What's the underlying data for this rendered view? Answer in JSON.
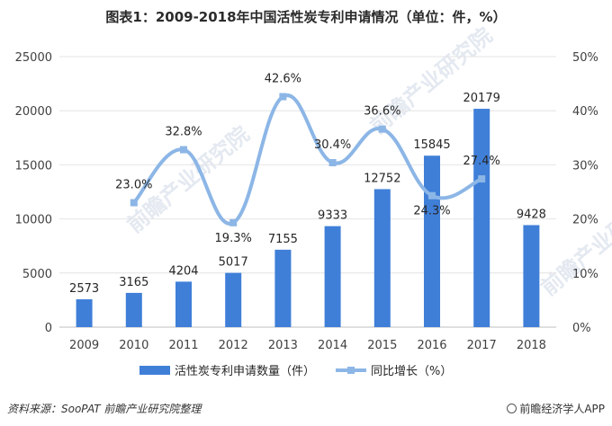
{
  "title": "图表1：2009-2018年中国活性炭专利申请情况（单位：件，%）",
  "footer": {
    "source": "资料来源：SooPAT  前瞻产业研究院整理",
    "brand": "前瞻经济学人APP"
  },
  "watermark": {
    "text": "前瞻产业研究院"
  },
  "colors": {
    "bar": "#3f7fd8",
    "line": "#8cb6e6"
  },
  "chart_data": {
    "type": "bar",
    "title": "图表1：2009-2018年中国活性炭专利申请情况（单位：件，%）",
    "categories": [
      "2009",
      "2010",
      "2011",
      "2012",
      "2013",
      "2014",
      "2015",
      "2016",
      "2017",
      "2018"
    ],
    "series": [
      {
        "name": "活性炭专利申请数量（件）",
        "type": "bar",
        "axis": "left",
        "values": [
          2573,
          3165,
          4204,
          5017,
          7155,
          9333,
          12752,
          15845,
          20179,
          9428
        ],
        "labels": [
          "2573",
          "3165",
          "4204",
          "5017",
          "7155",
          "9333",
          "12752",
          "15845",
          "20179",
          "9428"
        ]
      },
      {
        "name": "同比增长（%）",
        "type": "line",
        "axis": "right",
        "values": [
          null,
          23.0,
          32.8,
          19.3,
          42.6,
          30.4,
          36.6,
          24.3,
          27.4,
          null
        ],
        "labels": [
          "",
          "23.0%",
          "32.8%",
          "19.3%",
          "42.6%",
          "30.4%",
          "36.6%",
          "24.3%",
          "27.4%",
          ""
        ]
      }
    ],
    "yleft": {
      "ylim": [
        0,
        25000
      ],
      "ticks": [
        "0",
        "5000",
        "10000",
        "15000",
        "20000",
        "25000"
      ]
    },
    "yright": {
      "ylim": [
        0,
        50
      ],
      "ticks": [
        "0%",
        "10%",
        "20%",
        "30%",
        "40%",
        "50%"
      ]
    },
    "legend": [
      "活性炭专利申请数量（件）",
      "同比增长（%）"
    ],
    "legend_position": "bottom"
  }
}
